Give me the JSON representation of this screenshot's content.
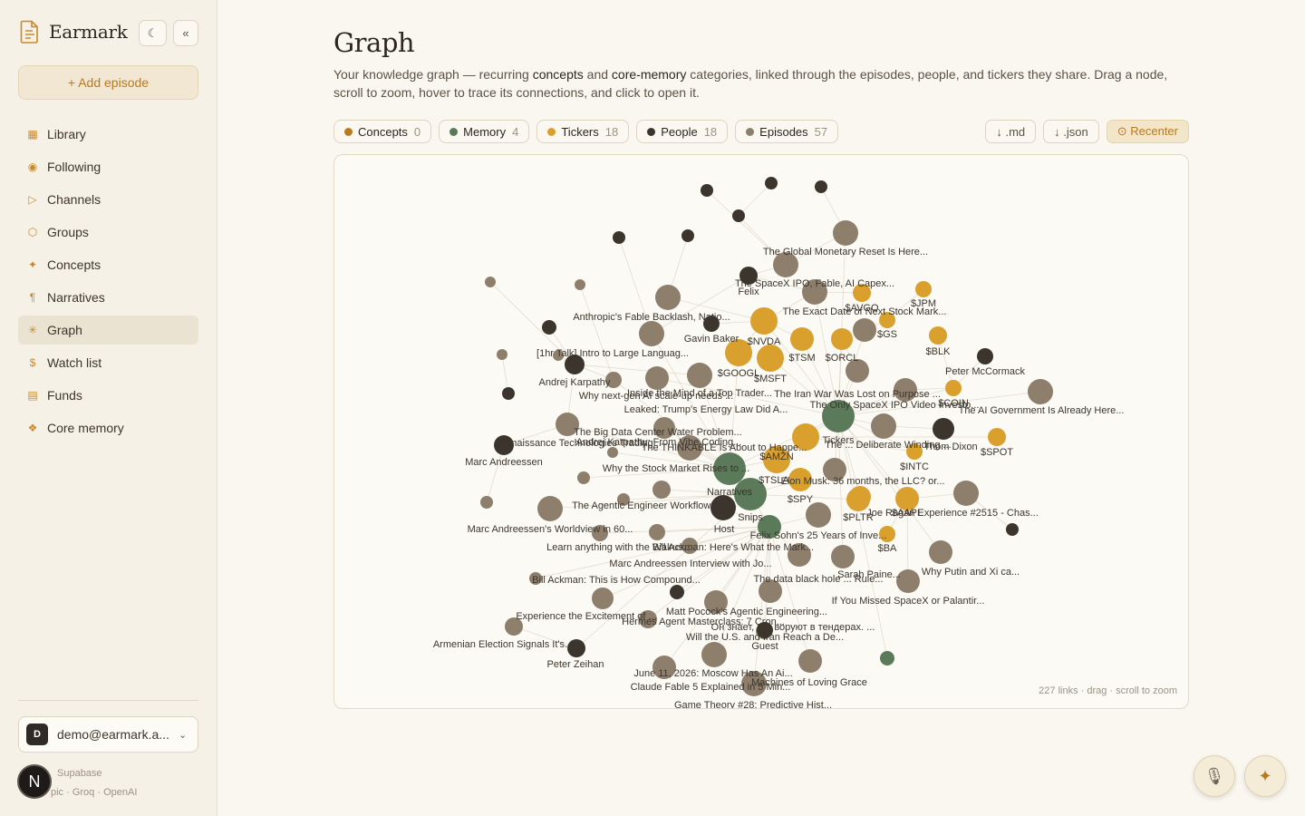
{
  "app": {
    "name": "Earmark",
    "theme_toggle_icon": "moon-icon",
    "collapse_icon": "double-chevron-left-icon",
    "add_episode_label": "+ Add episode"
  },
  "sidebar": {
    "items": [
      {
        "label": "Library",
        "icon": "grid-icon",
        "active": false
      },
      {
        "label": "Following",
        "icon": "target-icon",
        "active": false
      },
      {
        "label": "Channels",
        "icon": "play-icon",
        "active": false
      },
      {
        "label": "Groups",
        "icon": "hexagon-icon",
        "active": false
      },
      {
        "label": "Concepts",
        "icon": "sparkle-icon",
        "active": false
      },
      {
        "label": "Narratives",
        "icon": "pilcrow-icon",
        "active": false
      },
      {
        "label": "Graph",
        "icon": "asterisk-icon",
        "active": true
      },
      {
        "label": "Watch list",
        "icon": "dollar-icon",
        "active": false
      },
      {
        "label": "Funds",
        "icon": "stack-icon",
        "active": false
      },
      {
        "label": "Core memory",
        "icon": "diamond-icon",
        "active": false
      }
    ],
    "account": {
      "avatar_letter": "D",
      "email": "demo@earmark.a..."
    },
    "providers_line1": "Supabase",
    "providers_line2": "pic · Groq · OpenAI",
    "n_badge": "N"
  },
  "page": {
    "title": "Graph",
    "subtitle_a": "Your knowledge graph — recurring ",
    "subtitle_b": "concepts",
    "subtitle_c": " and ",
    "subtitle_d": "core-memory",
    "subtitle_e": " categories, linked through the episodes, people, and tickers they share. Drag a node, scroll to zoom, hover to trace its connections, and click to open it."
  },
  "filters": [
    {
      "label": "Concepts",
      "count": "0",
      "color": "#b87a1e"
    },
    {
      "label": "Memory",
      "count": "4",
      "color": "#5a7a5a"
    },
    {
      "label": "Tickers",
      "count": "18",
      "color": "#d9a02e"
    },
    {
      "label": "People",
      "count": "18",
      "color": "#3c352e"
    },
    {
      "label": "Episodes",
      "count": "57",
      "color": "#8d7f6c"
    }
  ],
  "actions": {
    "md": "↓ .md",
    "json": "↓ .json",
    "recenter": "⊙ Recenter"
  },
  "graph_footer": "227 links · drag · scroll to zoom",
  "graph": {
    "colors": {
      "episode": "#8d7f6c",
      "ticker": "#d9a02e",
      "person": "#3c352e",
      "memory": "#5a7a5a"
    },
    "nodes": [
      {
        "id": "p_top1",
        "type": "person",
        "label": ""
      },
      {
        "id": "p_top2",
        "type": "person",
        "label": ""
      },
      {
        "id": "p_top3",
        "type": "person",
        "label": ""
      },
      {
        "id": "p_top4",
        "type": "person",
        "label": ""
      },
      {
        "id": "p_top5",
        "type": "person",
        "label": ""
      },
      {
        "id": "p_top6",
        "type": "person",
        "label": ""
      },
      {
        "id": "e_gmr",
        "type": "episode",
        "label": "The Global Monetary Reset Is Here..."
      },
      {
        "id": "e_s1",
        "type": "episode",
        "label": ""
      },
      {
        "id": "p_felix",
        "type": "person",
        "label": "Felix"
      },
      {
        "id": "e_spacex",
        "type": "episode",
        "label": "The SpaceX IPO, Fable, AI Capex..."
      },
      {
        "id": "e_s2",
        "type": "episode",
        "label": ""
      },
      {
        "id": "t_avgo",
        "type": "ticker",
        "label": "$AVGO"
      },
      {
        "id": "t_jpm",
        "type": "ticker",
        "label": "$JPM"
      },
      {
        "id": "e_anth",
        "type": "episode",
        "label": "Anthropic's Fable Backlash, Natio..."
      },
      {
        "id": "t_nvda",
        "type": "ticker",
        "label": "$NVDA"
      },
      {
        "id": "p_gavin",
        "type": "person",
        "label": "Gavin Baker"
      },
      {
        "id": "e_exact",
        "type": "episode",
        "label": "The Exact Date of Next Stock Mark..."
      },
      {
        "id": "t_gs",
        "type": "ticker",
        "label": "$GS"
      },
      {
        "id": "p_left1",
        "type": "person",
        "label": ""
      },
      {
        "id": "e_1hr",
        "type": "episode",
        "label": "[1hr Talk] Intro to Large Languag..."
      },
      {
        "id": "t_tsm",
        "type": "ticker",
        "label": "$TSM"
      },
      {
        "id": "t_orcl",
        "type": "ticker",
        "label": "$ORCL"
      },
      {
        "id": "t_blk",
        "type": "ticker",
        "label": "$BLK"
      },
      {
        "id": "p_karp",
        "type": "person",
        "label": "Andrej Karpathy"
      },
      {
        "id": "t_googl",
        "type": "ticker",
        "label": "$GOOGL"
      },
      {
        "id": "t_msft",
        "type": "ticker",
        "label": "$MSFT"
      },
      {
        "id": "p_mccormack",
        "type": "person",
        "label": "Peter McCormack"
      },
      {
        "id": "e_inside",
        "type": "episode",
        "label": "Inside the Mind of a Top Trader..."
      },
      {
        "id": "e_why",
        "type": "episode",
        "label": "Why next-gen AI scale-up needs ..."
      },
      {
        "id": "e_iran",
        "type": "episode",
        "label": "The Iran War Was Lost on Purpose ..."
      },
      {
        "id": "e_leaked",
        "type": "episode",
        "label": "Leaked: Trump's Energy Law Did A..."
      },
      {
        "id": "e_onlysx",
        "type": "episode",
        "label": "The Only SpaceX IPO Video Investo..."
      },
      {
        "id": "t_coin",
        "type": "ticker",
        "label": "$COIN"
      },
      {
        "id": "e_govt",
        "type": "episode",
        "label": "The AI Government Is Already Here..."
      },
      {
        "id": "m_center",
        "type": "memory",
        "label": ""
      },
      {
        "id": "e_bigdata",
        "type": "episode",
        "label": "The Big Data Center Water Problem..."
      },
      {
        "id": "t_spot",
        "type": "ticker",
        "label": "$SPOT"
      },
      {
        "id": "p_renaiss",
        "type": "person",
        "label": "Renaissance Technologies Trading..."
      },
      {
        "id": "t_tickers",
        "type": "ticker",
        "label": "Tickers"
      },
      {
        "id": "e_deliberate",
        "type": "episode",
        "label": "The ... Deliberate Winding ..."
      },
      {
        "id": "p_thom",
        "type": "person",
        "label": "Thom Dixon"
      },
      {
        "id": "e_karp2",
        "type": "episode",
        "label": "Andrej Karpathy: From Vibe Coding..."
      },
      {
        "id": "e_thinkable",
        "type": "episode",
        "label": "The THINKABLE Is About to Happe..."
      },
      {
        "id": "t_amzn",
        "type": "ticker",
        "label": "$AMZN"
      },
      {
        "id": "t_intc",
        "type": "ticker",
        "label": "$INTC"
      },
      {
        "id": "p_marc",
        "type": "person",
        "label": "Marc Andreessen"
      },
      {
        "id": "m_narr",
        "type": "memory",
        "label": ""
      },
      {
        "id": "e_whystock",
        "type": "episode",
        "label": "Why the Stock Market Rises to ..."
      },
      {
        "id": "t_tsla",
        "type": "ticker",
        "label": "$TSLA"
      },
      {
        "id": "e_llc",
        "type": "episode",
        "label": "Elon Musk: 36 months, the LLC? or..."
      },
      {
        "id": "m_narratives",
        "type": "memory",
        "label": "Narratives"
      },
      {
        "id": "e_agentic",
        "type": "episode",
        "label": "The Agentic Engineer Workflow..."
      },
      {
        "id": "t_spy",
        "type": "ticker",
        "label": "$SPY"
      },
      {
        "id": "p_host",
        "type": "person",
        "label": "Host"
      },
      {
        "id": "t_pltr",
        "type": "ticker",
        "label": "$PLTR"
      },
      {
        "id": "t_aapl",
        "type": "ticker",
        "label": "$AAPL"
      },
      {
        "id": "e_rogan",
        "type": "episode",
        "label": "Joe Rogan Experience #2515 - Chas..."
      },
      {
        "id": "m_snips",
        "type": "memory",
        "label": "Snips"
      },
      {
        "id": "e_worldview",
        "type": "episode",
        "label": "Marc Andreessen's Worldview in 60..."
      },
      {
        "id": "e_felix25",
        "type": "episode",
        "label": "Felix Sohn's 25 Years of Inve..."
      },
      {
        "id": "t_ba",
        "type": "ticker",
        "label": "$BA"
      },
      {
        "id": "e_learn",
        "type": "episode",
        "label": "Learn anything with the Walrus..."
      },
      {
        "id": "e_ackman",
        "type": "episode",
        "label": "Bill Ackman: Here's What the Mark..."
      },
      {
        "id": "e_marcint",
        "type": "episode",
        "label": "Marc Andreessen Interview with Jo..."
      },
      {
        "id": "e_putin",
        "type": "episode",
        "label": "Why Putin and Xi ca..."
      },
      {
        "id": "e_ackcomp",
        "type": "episode",
        "label": "Bill Ackman: This is How Compound..."
      },
      {
        "id": "e_datablack",
        "type": "episode",
        "label": "The data black hole ... Rule..."
      },
      {
        "id": "e_sarah",
        "type": "episode",
        "label": "Sarah Paine..."
      },
      {
        "id": "e_missed",
        "type": "episode",
        "label": "If You Missed SpaceX or Palantir..."
      },
      {
        "id": "e_excite",
        "type": "episode",
        "label": "Experience the Excitement of ..."
      },
      {
        "id": "e_pocock",
        "type": "episode",
        "label": "Matt Pocock's Agentic Engineering..."
      },
      {
        "id": "e_hermes",
        "type": "episode",
        "label": "Hermes Agent Masterclass: 7 Cron..."
      },
      {
        "id": "e_tender",
        "type": "episode",
        "label": "Он знает, как воруют в тендерах. ..."
      },
      {
        "id": "e_armenia",
        "type": "episode",
        "label": "Armenian Election Signals It's..."
      },
      {
        "id": "e_usiran",
        "type": "episode",
        "label": "Will the U.S. and Iran Reach a De..."
      },
      {
        "id": "p_guest",
        "type": "person",
        "label": "Guest"
      },
      {
        "id": "p_zeihan",
        "type": "person",
        "label": "Peter Zeihan"
      },
      {
        "id": "e_moscow",
        "type": "episode",
        "label": "June 11, 2026: Moscow Has An Ai..."
      },
      {
        "id": "e_grace",
        "type": "episode",
        "label": "Machines of Loving Grace"
      },
      {
        "id": "e_claude",
        "type": "episode",
        "label": "Claude Fable 5 Explained in 5 Min..."
      },
      {
        "id": "e_game",
        "type": "episode",
        "label": "Game Theory #28: Predictive Hist..."
      },
      {
        "id": "m_small",
        "type": "memory",
        "label": ""
      },
      {
        "id": "e_sm1",
        "type": "episode",
        "label": ""
      },
      {
        "id": "e_sm2",
        "type": "episode",
        "label": ""
      },
      {
        "id": "e_sm3",
        "type": "episode",
        "label": ""
      },
      {
        "id": "e_sm4",
        "type": "episode",
        "label": ""
      },
      {
        "id": "e_sm5",
        "type": "episode",
        "label": ""
      },
      {
        "id": "e_sm6",
        "type": "episode",
        "label": ""
      },
      {
        "id": "p_br",
        "type": "person",
        "label": ""
      },
      {
        "id": "p_mid",
        "type": "person",
        "label": ""
      }
    ]
  }
}
